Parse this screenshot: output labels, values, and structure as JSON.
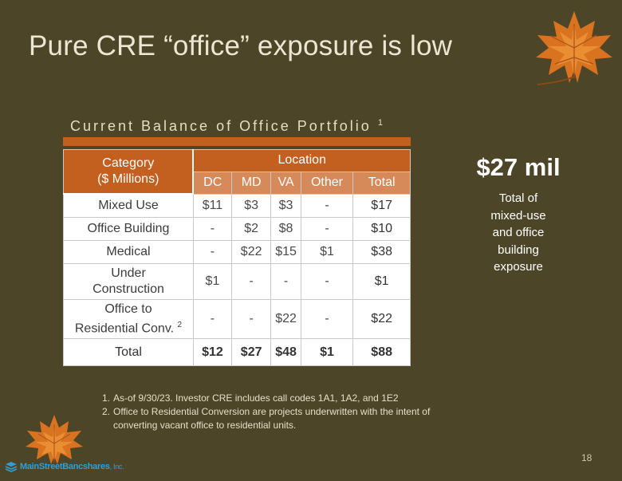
{
  "slide": {
    "title": "Pure CRE “office” exposure is low",
    "page_number": "18"
  },
  "table": {
    "heading": "Current Balance of Office Portfolio",
    "heading_sup": "1",
    "category_line1": "Category",
    "category_line2": "($ Millions)",
    "location_header": "Location",
    "columns": [
      "DC",
      "MD",
      "VA",
      "Other",
      "Total"
    ],
    "rows": [
      {
        "label_line1": "Mixed Use",
        "label_line2": "",
        "sup": "",
        "values": [
          "$11",
          "$3",
          "$3",
          "-",
          "$17"
        ]
      },
      {
        "label_line1": "Office Building",
        "label_line2": "",
        "sup": "",
        "values": [
          "-",
          "$2",
          "$8",
          "-",
          "$10"
        ]
      },
      {
        "label_line1": "Medical",
        "label_line2": "",
        "sup": "",
        "values": [
          "-",
          "$22",
          "$15",
          "$1",
          "$38"
        ]
      },
      {
        "label_line1": "Under",
        "label_line2": "Construction",
        "sup": "",
        "values": [
          "$1",
          "-",
          "-",
          "-",
          "$1"
        ]
      },
      {
        "label_line1": "Office to",
        "label_line2": "Residential Conv.",
        "sup": "2",
        "values": [
          "-",
          "-",
          "$22",
          "-",
          "$22"
        ]
      }
    ],
    "total_row": {
      "label": "Total",
      "values": [
        "$12",
        "$27",
        "$48",
        "$1",
        "$88"
      ]
    }
  },
  "callout": {
    "value": "$27 mil",
    "line1": "Total of",
    "line2": "mixed-use",
    "line3": "and office",
    "line4": "building",
    "line5": "exposure"
  },
  "footnotes": [
    {
      "num": "1.",
      "text": "As-of 9/30/23. Investor CRE includes call codes 1A1, 1A2, and 1E2"
    },
    {
      "num": "2.",
      "text": "Office to Residential Conversion are projects underwritten with the intent of converting vacant office to residential  units."
    }
  ],
  "logo": {
    "name": "MainStreetBancshares",
    "suffix": ", Inc."
  },
  "colors": {
    "background": "#4d4527",
    "accent_orange": "#c35f1f",
    "header_light_orange": "#d68a5a",
    "logo_blue": "#2f9fd6"
  }
}
